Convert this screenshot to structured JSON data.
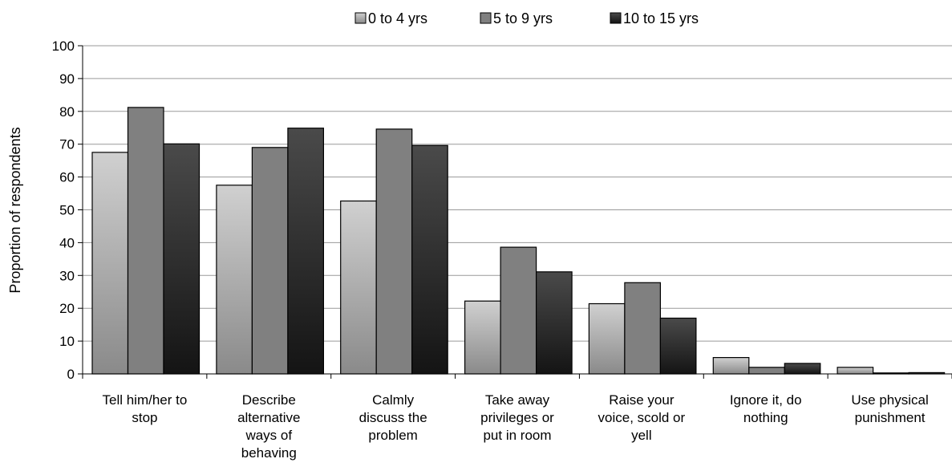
{
  "chart_data": {
    "type": "bar",
    "title": "",
    "xlabel": "",
    "ylabel": "Proportion of respondents",
    "ylim": [
      0,
      100
    ],
    "yticks": [
      0,
      10,
      20,
      30,
      40,
      50,
      60,
      70,
      80,
      90,
      100
    ],
    "grid": "horizontal",
    "legend_position": "top",
    "categories": [
      "Tell him/her to stop",
      "Describe alternative ways of behaving",
      "Calmly discuss the problem",
      "Take away privileges or put in room",
      "Raise your voice, scold or yell",
      "Ignore it, do nothing",
      "Use physical punishment"
    ],
    "category_label_lines": [
      [
        "Tell him/her to",
        "stop"
      ],
      [
        "Describe",
        "alternative",
        "ways of",
        "behaving"
      ],
      [
        "Calmly",
        "discuss the",
        "problem"
      ],
      [
        "Take away",
        "privileges or",
        "put in room"
      ],
      [
        "Raise your",
        "voice, scold or",
        "yell"
      ],
      [
        "Ignore it, do",
        "nothing"
      ],
      [
        "Use physical",
        "punishment"
      ]
    ],
    "series": [
      {
        "name": "0 to 4 yrs",
        "values": [
          67.5,
          57.5,
          52.7,
          22.2,
          21.4,
          5.0,
          2.0
        ],
        "color_top": "#d0d0d0",
        "color_bottom": "#8a8a8a"
      },
      {
        "name": "5 to 9 yrs",
        "values": [
          81.2,
          69.0,
          74.6,
          38.6,
          27.8,
          2.0,
          0.3
        ],
        "color_top": "#808080",
        "color_bottom": "#808080"
      },
      {
        "name": "10 to 15 yrs",
        "values": [
          70.1,
          74.9,
          69.6,
          31.1,
          17.0,
          3.2,
          0.4
        ],
        "color_top": "#4a4a4a",
        "color_bottom": "#141414"
      }
    ]
  }
}
